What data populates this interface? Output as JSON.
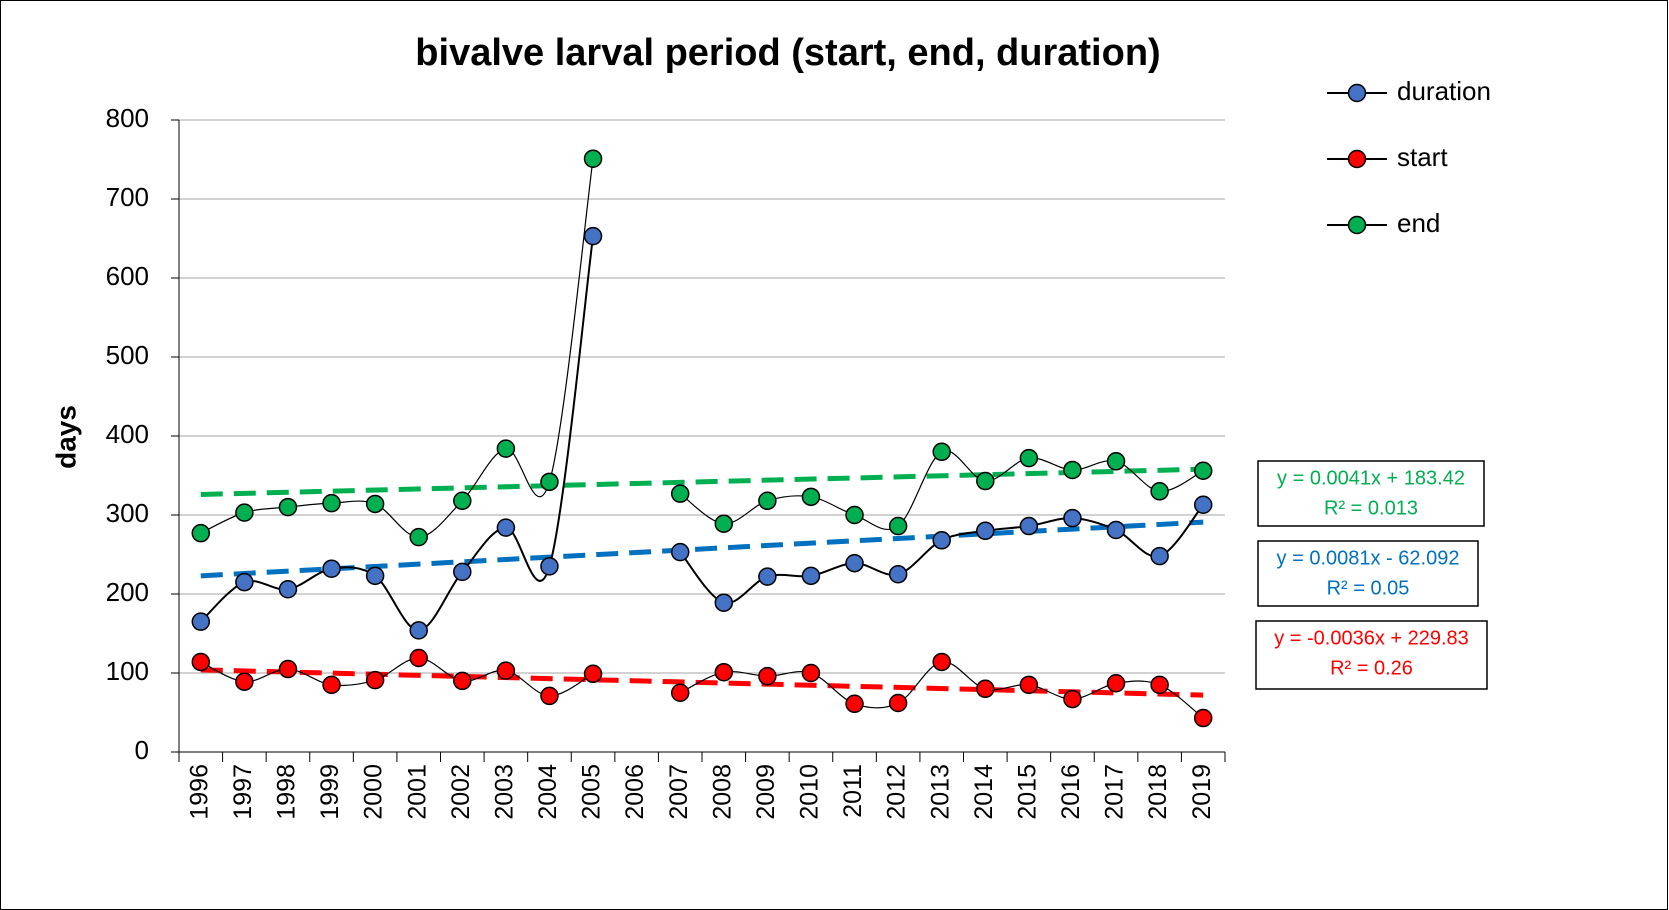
{
  "chart_data": {
    "type": "line",
    "title": "bivalve larval period (start, end, duration)",
    "y_label": "days",
    "categories": [
      "1996",
      "1997",
      "1998",
      "1999",
      "2000",
      "2001",
      "2002",
      "2003",
      "2004",
      "2005",
      "2006",
      "2007",
      "2008",
      "2009",
      "2010",
      "2011",
      "2012",
      "2013",
      "2014",
      "2015",
      "2016",
      "2017",
      "2018",
      "2019"
    ],
    "ylim": [
      0,
      800
    ],
    "yticks": [
      0,
      100,
      200,
      300,
      400,
      500,
      600,
      700,
      800
    ],
    "grid": true,
    "legend": "top-right",
    "series": [
      {
        "name": "duration",
        "color": "#4472c4",
        "trend_color": "#0070c0",
        "values": [
          165,
          215,
          206,
          232,
          223,
          154,
          228,
          284,
          235,
          653,
          null,
          253,
          189,
          222,
          223,
          239,
          225,
          268,
          280,
          286,
          296,
          281,
          248,
          313
        ],
        "trend": [
          223,
          291
        ],
        "trend_label": [
          "y = 0.0081x - 62.092",
          "R² = 0.05"
        ]
      },
      {
        "name": "start",
        "color": "#ff0000",
        "trend_color": "#ff0000",
        "values": [
          114,
          89,
          105,
          85,
          91,
          119,
          90,
          103,
          71,
          99,
          null,
          75,
          101,
          96,
          100,
          61,
          62,
          114,
          80,
          85,
          67,
          87,
          85,
          43
        ],
        "trend": [
          104,
          72
        ],
        "trend_label": [
          "y = -0.0036x + 229.83",
          "R² = 0.26"
        ]
      },
      {
        "name": "end",
        "color": "#00b050",
        "trend_color": "#00b050",
        "values": [
          277,
          303,
          310,
          315,
          314,
          272,
          318,
          384,
          342,
          751,
          null,
          327,
          289,
          318,
          323,
          300,
          286,
          380,
          343,
          372,
          357,
          368,
          330,
          356
        ],
        "trend": [
          326,
          358
        ],
        "trend_label": [
          "y = 0.0041x + 183.42",
          "R² = 0.013"
        ]
      }
    ]
  }
}
